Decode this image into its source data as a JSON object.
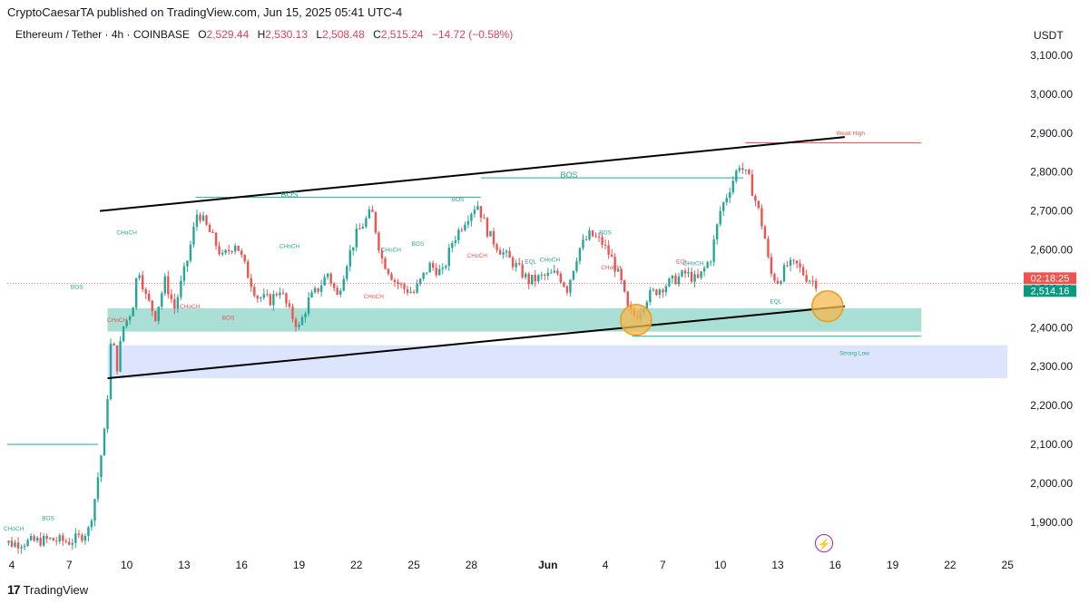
{
  "header": {
    "published": "CryptoCaesarTA published on TradingView.com, Jun 15, 2025 05:41 UTC-4",
    "symbol": "Ethereum / Tether · 4h · COINBASE",
    "ohlc": {
      "o_label": "O",
      "o": "2,529.44",
      "h_label": "H",
      "h": "2,530.13",
      "l_label": "L",
      "l": "2,508.48",
      "c_label": "C",
      "c": "2,515.24",
      "change": "−14.72 (−0.58%)"
    },
    "currency": "USDT"
  },
  "footer": {
    "brand": "TradingView"
  },
  "colors": {
    "up": "#26a69a",
    "down": "#ef5350",
    "zone_green": "#9ad9cc",
    "zone_blue": "#d6e0fb",
    "circle": "#f5b84c"
  },
  "chart_data": {
    "type": "candlestick",
    "pair": "ETH/USDT",
    "timeframe": "4h",
    "y_axis": {
      "min": 1800,
      "max": 3150,
      "ticks": [
        1900,
        2000,
        2100,
        2200,
        2300,
        2400,
        2500,
        2600,
        2700,
        2800,
        2900,
        3000,
        3100
      ],
      "tick_labels": [
        "1,900.00",
        "2,000.00",
        "2,100.00",
        "2,200.00",
        "2,300.00",
        "2,400.00",
        "2,500.00",
        "2,600.00",
        "2,700.00",
        "2,800.00",
        "2,900.00",
        "3,000.00",
        "3,100.00"
      ]
    },
    "x_axis": {
      "ticks": [
        "4",
        "7",
        "10",
        "13",
        "16",
        "19",
        "22",
        "25",
        "28",
        "Jun",
        "4",
        "7",
        "10",
        "13",
        "16",
        "19",
        "22",
        "25"
      ],
      "tick_days": [
        4,
        7,
        10,
        13,
        16,
        19,
        22,
        25,
        28,
        32,
        35,
        38,
        41,
        44,
        47,
        50,
        53,
        56
      ]
    },
    "current_price": {
      "label": "2,514.16",
      "countdown": "02:18:25",
      "value": 2514.16
    },
    "close_path": [
      [
        3,
        1860
      ],
      [
        4,
        1845
      ],
      [
        5,
        1850
      ],
      [
        6,
        1855
      ],
      [
        7,
        1850
      ],
      [
        7.5,
        1860
      ],
      [
        8,
        1880
      ],
      [
        8.3,
        1950
      ],
      [
        8.6,
        2050
      ],
      [
        8.9,
        2150
      ],
      [
        9.2,
        2380
      ],
      [
        9.5,
        2300
      ],
      [
        9.8,
        2400
      ],
      [
        10.3,
        2450
      ],
      [
        10.6,
        2560
      ],
      [
        11,
        2480
      ],
      [
        11.5,
        2430
      ],
      [
        12,
        2520
      ],
      [
        12.5,
        2450
      ],
      [
        13.2,
        2580
      ],
      [
        13.7,
        2700
      ],
      [
        14.5,
        2630
      ],
      [
        15,
        2580
      ],
      [
        15.7,
        2620
      ],
      [
        16.3,
        2540
      ],
      [
        16.8,
        2480
      ],
      [
        17.5,
        2470
      ],
      [
        18,
        2500
      ],
      [
        18.5,
        2440
      ],
      [
        19,
        2400
      ],
      [
        19.5,
        2470
      ],
      [
        20,
        2500
      ],
      [
        20.5,
        2540
      ],
      [
        21,
        2480
      ],
      [
        21.5,
        2570
      ],
      [
        22,
        2640
      ],
      [
        22.8,
        2700
      ],
      [
        23.3,
        2580
      ],
      [
        24,
        2520
      ],
      [
        24.5,
        2500
      ],
      [
        25,
        2490
      ],
      [
        25.8,
        2560
      ],
      [
        26.5,
        2540
      ],
      [
        27,
        2620
      ],
      [
        27.7,
        2680
      ],
      [
        28.3,
        2720
      ],
      [
        28.9,
        2640
      ],
      [
        29.5,
        2600
      ],
      [
        30.3,
        2560
      ],
      [
        31,
        2520
      ],
      [
        31.7,
        2530
      ],
      [
        32.5,
        2540
      ],
      [
        33,
        2500
      ],
      [
        33.6,
        2600
      ],
      [
        34.2,
        2640
      ],
      [
        34.8,
        2620
      ],
      [
        35.3,
        2580
      ],
      [
        35.8,
        2520
      ],
      [
        36.2,
        2440
      ],
      [
        36.6,
        2430
      ],
      [
        37.2,
        2480
      ],
      [
        37.8,
        2500
      ],
      [
        38.5,
        2520
      ],
      [
        39.2,
        2540
      ],
      [
        39.8,
        2520
      ],
      [
        40.5,
        2580
      ],
      [
        41,
        2700
      ],
      [
        41.5,
        2760
      ],
      [
        42,
        2820
      ],
      [
        42.5,
        2780
      ],
      [
        43,
        2700
      ],
      [
        43.3,
        2640
      ],
      [
        43.6,
        2540
      ],
      [
        44,
        2520
      ],
      [
        44.5,
        2560
      ],
      [
        45,
        2560
      ],
      [
        45.5,
        2530
      ],
      [
        46,
        2515
      ]
    ],
    "levels": [
      {
        "name": "upper-trendline",
        "from": [
          8.6,
          2700
        ],
        "to": [
          47.5,
          2890
        ]
      },
      {
        "name": "lower-trendline",
        "from": [
          9,
          2270
        ],
        "to": [
          47.5,
          2455
        ]
      }
    ],
    "zones": [
      {
        "name": "demand-zone",
        "x_from": 9,
        "x_to": 51.5,
        "y_from": 2390,
        "y_to": 2450
      },
      {
        "name": "strong-low-zone",
        "x_from": 9,
        "x_to": 56,
        "y_from": 2270,
        "y_to": 2355
      }
    ],
    "markers": [
      {
        "text": "BOS",
        "x": 18.5,
        "y": 2735,
        "color": "#26a69a"
      },
      {
        "text": "BOS",
        "x": 33.1,
        "y": 2785,
        "color": "#26a69a"
      },
      {
        "text": "Weak High",
        "x": 47.8,
        "y": 2895,
        "color": "#ef5350"
      },
      {
        "text": "Strong Low",
        "x": 48,
        "y": 2330,
        "color": "#26a69a"
      },
      {
        "text": "EQL",
        "x": 43.9,
        "y": 2462,
        "color": "#26a69a"
      },
      {
        "text": "CHoCH",
        "x": 10,
        "y": 2640,
        "color": "#26a69a"
      },
      {
        "text": "CHoCH",
        "x": 9.5,
        "y": 2415,
        "color": "#ef5350"
      },
      {
        "text": "BOS",
        "x": 7.4,
        "y": 2500,
        "color": "#26a69a"
      },
      {
        "text": "CHoCH",
        "x": 13.3,
        "y": 2450,
        "color": "#ef5350"
      },
      {
        "text": "BOS",
        "x": 15.3,
        "y": 2420,
        "color": "#ef5350"
      },
      {
        "text": "CHoCH",
        "x": 18.5,
        "y": 2605,
        "color": "#26a69a"
      },
      {
        "text": "CHoCH",
        "x": 23.8,
        "y": 2595,
        "color": "#26a69a"
      },
      {
        "text": "BOS",
        "x": 25.2,
        "y": 2610,
        "color": "#26a69a"
      },
      {
        "text": "CHoCH",
        "x": 22.9,
        "y": 2475,
        "color": "#ef5350"
      },
      {
        "text": "BOS",
        "x": 27.3,
        "y": 2725,
        "color": "#26a69a"
      },
      {
        "text": "CHoCH",
        "x": 28.3,
        "y": 2580,
        "color": "#ef5350"
      },
      {
        "text": "CHoCH",
        "x": 32.1,
        "y": 2570,
        "color": "#26a69a"
      },
      {
        "text": "EQL",
        "x": 31.1,
        "y": 2565,
        "color": "#26a69a"
      },
      {
        "text": "BOS",
        "x": 35,
        "y": 2640,
        "color": "#26a69a"
      },
      {
        "text": "CHoCH",
        "x": 35.3,
        "y": 2550,
        "color": "#ef5350"
      },
      {
        "text": "EQL",
        "x": 39,
        "y": 2565,
        "color": "#ef5350"
      },
      {
        "text": "CHoCH",
        "x": 39.6,
        "y": 2560,
        "color": "#26a69a"
      },
      {
        "text": "CHoCH",
        "x": 4.1,
        "y": 1878,
        "color": "#26a69a"
      },
      {
        "text": "BOS",
        "x": 5.9,
        "y": 1905,
        "color": "#26a69a"
      }
    ],
    "circles": [
      {
        "x": 36.6,
        "y": 2420
      },
      {
        "x": 46.6,
        "y": 2455
      }
    ]
  }
}
